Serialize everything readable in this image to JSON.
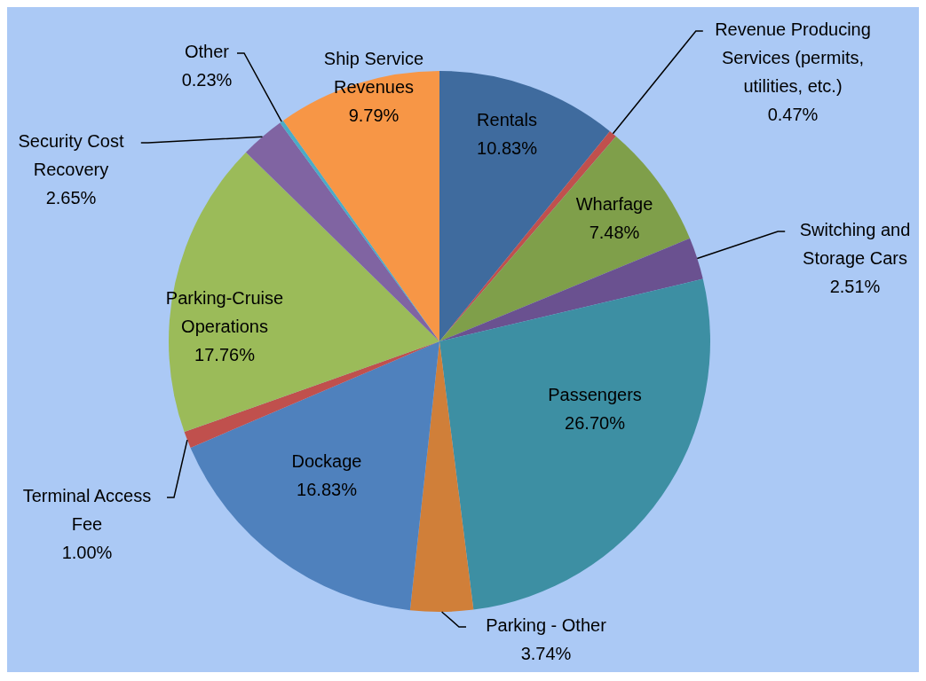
{
  "chart_data": {
    "type": "pie",
    "categories": [
      "Rentals",
      "Revenue Producing Services (permits, utilities, etc.)",
      "Wharfage",
      "Switching and Storage Cars",
      "Passengers",
      "Parking - Other",
      "Dockage",
      "Terminal Access Fee",
      "Parking-Cruise Operations",
      "Security Cost Recovery",
      "Other",
      "Ship Service Revenues"
    ],
    "values": [
      10.83,
      0.47,
      7.48,
      2.51,
      26.7,
      3.74,
      16.83,
      1.0,
      17.76,
      2.65,
      0.23,
      9.79
    ],
    "value_labels": [
      "10.83%",
      "0.47%",
      "7.48%",
      "2.51%",
      "26.70%",
      "3.74%",
      "16.83%",
      "1.00%",
      "17.76%",
      "2.65%",
      "0.23%",
      "9.79%"
    ],
    "colors": [
      "#3f6b9e",
      "#c0504d",
      "#7f9f4a",
      "#6a5190",
      "#3d8fa3",
      "#d07f39",
      "#4f81bd",
      "#c0504d",
      "#9bbb59",
      "#8064a2",
      "#4bacc6",
      "#f79646"
    ]
  }
}
